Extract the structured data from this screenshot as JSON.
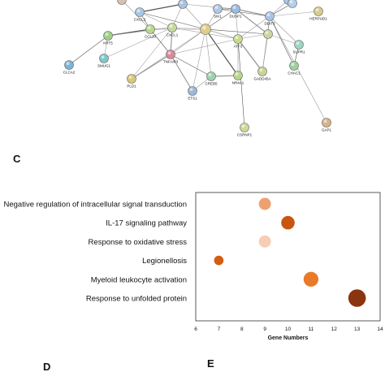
{
  "network": {
    "nodes": [
      {
        "label": "KRT5"
      },
      {
        "label": "SMUG1"
      },
      {
        "label": "CLCA2"
      },
      {
        "label": "PLD1"
      },
      {
        "label": "CCL20"
      },
      {
        "label": "CXCL1"
      },
      {
        "label": "CXCL2"
      },
      {
        "label": "TNFAIP3"
      },
      {
        "label": "ETS1"
      },
      {
        "label": "CREB5"
      },
      {
        "label": "NR4A1"
      },
      {
        "label": "ATF3"
      },
      {
        "label": "DUSP1"
      },
      {
        "label": "DDIT3"
      },
      {
        "label": "HERPUD1"
      },
      {
        "label": "GADD45A"
      },
      {
        "label": "CHAC1"
      },
      {
        "label": "SUPR1"
      },
      {
        "label": "SIK1"
      },
      {
        "label": "CSRNP1"
      },
      {
        "label": "GAP1"
      },
      {
        "label": ""
      },
      {
        "label": ""
      },
      {
        "label": ""
      },
      {
        "label": ""
      },
      {
        "label": ""
      },
      {
        "label": ""
      }
    ]
  },
  "panel_letters": {
    "c": "C",
    "d": "D",
    "e": "E"
  },
  "chart_data": {
    "type": "scatter",
    "title": "",
    "xlabel": "Gene Numbers",
    "ylabel": "",
    "xlim": [
      6,
      14
    ],
    "xticks": [
      "6",
      "7",
      "8",
      "9",
      "10",
      "11",
      "12",
      "13",
      "14"
    ],
    "grid": false,
    "legend": "none",
    "categories": [
      "Negative regulation of intracellular signal transduction",
      "IL-17 signaling pathway",
      "Response to oxidative stress",
      "Legionellosis",
      "Myeloid leukocyte activation",
      "Response to unfolded protein"
    ],
    "points": [
      {
        "category": "Negative regulation of intracellular signal transduction",
        "x": 9,
        "size": 9,
        "color": "#f0a070"
      },
      {
        "category": "IL-17 signaling pathway",
        "x": 10,
        "size": 10,
        "color": "#c8560f"
      },
      {
        "category": "Response to oxidative stress",
        "x": 9,
        "size": 9,
        "color": "#f7cdb5"
      },
      {
        "category": "Legionellosis",
        "x": 7,
        "size": 7,
        "color": "#d45d12"
      },
      {
        "category": "Myeloid leukocyte activation",
        "x": 11,
        "size": 11,
        "color": "#e87a28"
      },
      {
        "category": "Response to unfolded protein",
        "x": 13,
        "size": 13,
        "color": "#8a3410"
      }
    ]
  }
}
